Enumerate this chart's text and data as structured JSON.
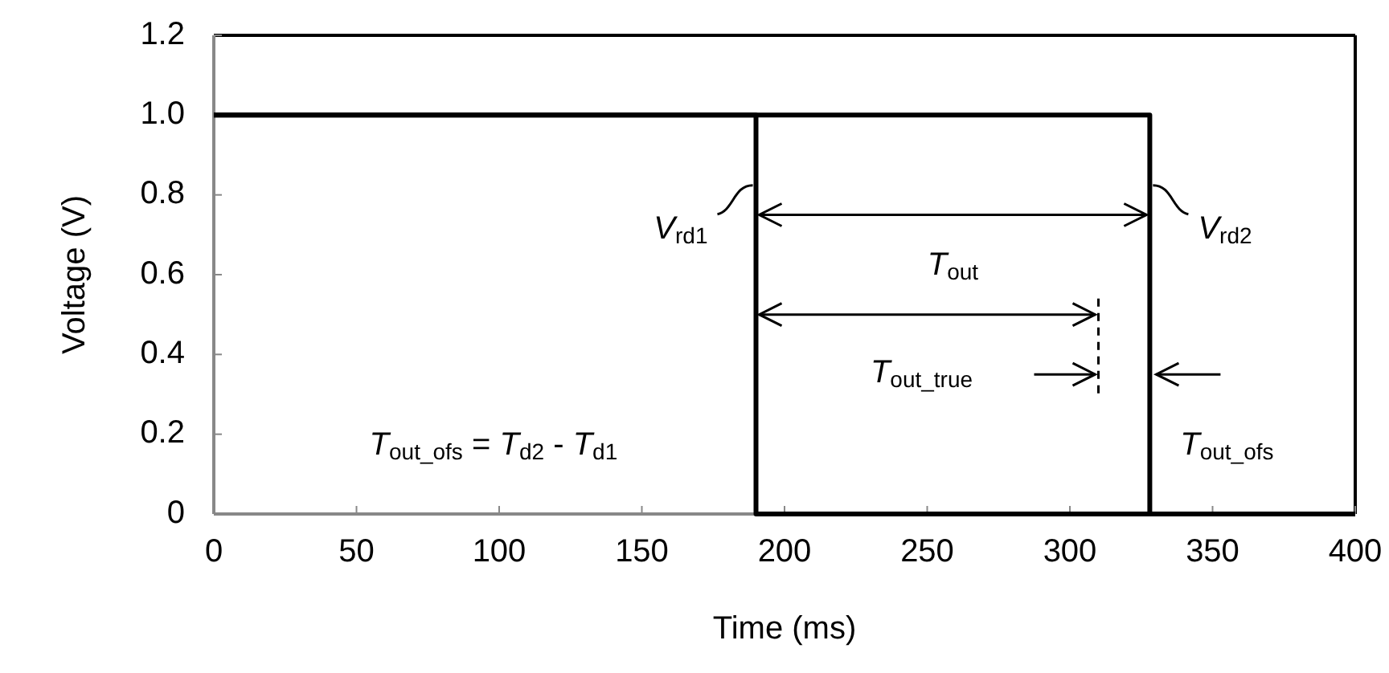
{
  "chart_data": {
    "type": "line",
    "xlabel": "Time (ms)",
    "ylabel": "Voltage (V)",
    "xlim": [
      0,
      400
    ],
    "xticks": [
      0,
      50,
      100,
      150,
      200,
      250,
      300,
      350,
      400
    ],
    "ylim": [
      0,
      1.2
    ],
    "yticks": [
      0,
      0.2,
      0.4,
      0.6,
      0.8,
      {
        "value": 1,
        "label": "1.0"
      },
      1.2
    ],
    "series": [
      {
        "name": "V$_{rd1}$",
        "color": "#000000",
        "x": [
          0,
          190,
          190,
          400
        ],
        "values": [
          1,
          1,
          0,
          0
        ]
      },
      {
        "name": "V$_{rd2}$",
        "color": "#000000",
        "x": [
          0,
          328,
          328,
          400
        ],
        "values": [
          1,
          1,
          0,
          0
        ]
      }
    ],
    "annotations": [
      "T$_{out}$",
      "T$_{out_true}$",
      "T$_{out_ofs}$",
      "T$_{out_ofs}$ = T$_{d2}$ - T$_{d1}$"
    ],
    "grid": false,
    "legend": "center",
    "marker": "none",
    "line_style": "solid"
  }
}
